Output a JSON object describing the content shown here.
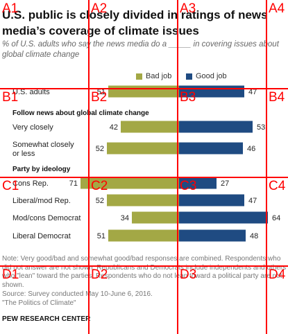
{
  "title": "U.S. public is closely divided in ratings of news media’s coverage of climate issues",
  "subtitle": "% of U.S. adults who say the news media do a _____ in covering issues about global climate change",
  "legend": [
    {
      "label": "Bad job",
      "color": "#a3a845"
    },
    {
      "label": "Good job",
      "color": "#1f4b82"
    }
  ],
  "chart_data": {
    "type": "bar",
    "orientation": "horizontal-diverging",
    "series": [
      {
        "name": "Bad job",
        "color": "#a3a845"
      },
      {
        "name": "Good job",
        "color": "#1f4b82"
      }
    ],
    "rows": [
      {
        "kind": "row",
        "label": "U.S. adults",
        "bad": 51,
        "good": 47
      },
      {
        "kind": "group",
        "label": "Follow news about global climate change"
      },
      {
        "kind": "row",
        "label": "Very closely",
        "bad": 42,
        "good": 53
      },
      {
        "kind": "row",
        "label": "Somewhat closely or less",
        "bad": 52,
        "good": 46
      },
      {
        "kind": "group",
        "label": "Party by ideology"
      },
      {
        "kind": "row",
        "label": "Cons Rep.",
        "bad": 71,
        "good": 27
      },
      {
        "kind": "row",
        "label": "Liberal/mod Rep.",
        "bad": 52,
        "good": 47
      },
      {
        "kind": "row",
        "label": "Mod/cons Democrat",
        "bad": 34,
        "good": 64
      },
      {
        "kind": "row",
        "label": "Liberal Democrat",
        "bad": 51,
        "good": 48
      }
    ]
  },
  "note": "Note: Very good/bad and somewhat good/bad responses are combined. Respondents who did not answer are not shown. Republicans and Democrats include independents and others who \"lean\" toward the parties. Respondents who do not lean toward a political party are not shown.",
  "source": "Source: Survey conducted May 10-June 6, 2016.",
  "report": "\"The Politics of Climate\"",
  "brand": "PEW RESEARCH CENTER",
  "grid": {
    "labels": [
      "A1",
      "A2",
      "A3",
      "A4",
      "B1",
      "B2",
      "B3",
      "B4",
      "C1",
      "C2",
      "C3",
      "C4",
      "D1",
      "D2",
      "D3",
      "D4"
    ],
    "color": "#ff0000"
  }
}
